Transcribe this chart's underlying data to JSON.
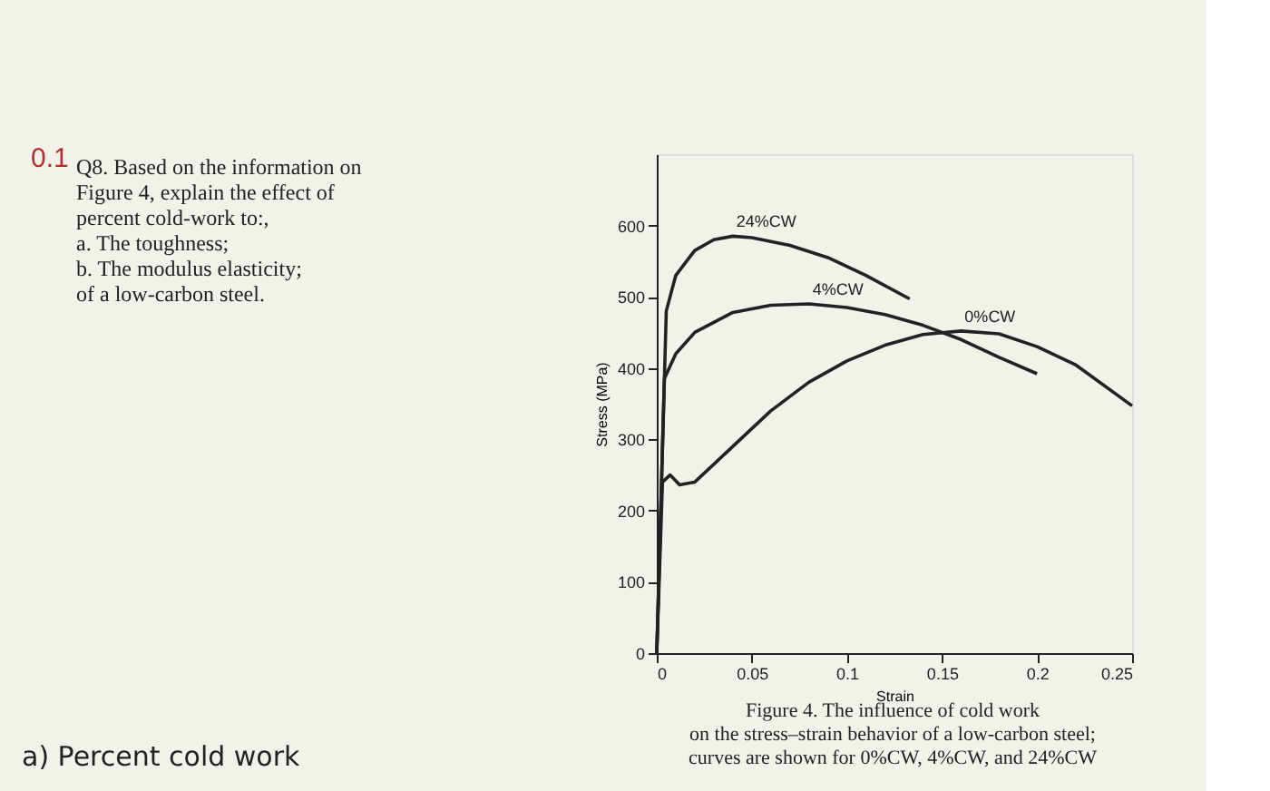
{
  "chart_data": {
    "type": "line",
    "xlabel": "Strain",
    "ylabel": "Stress (MPa)",
    "xlim": [
      0,
      0.25
    ],
    "ylim": [
      0,
      700
    ],
    "xticks": [
      0,
      0.05,
      0.1,
      0.15,
      0.2,
      0.25
    ],
    "yticks": [
      0,
      100,
      200,
      300,
      400,
      500,
      600
    ],
    "grid": false,
    "legend": false,
    "marker": "none",
    "line_style": "solid",
    "series": [
      {
        "name": "24%CW",
        "color": "#222222",
        "x": [
          0,
          0.005,
          0.01,
          0.02,
          0.03,
          0.04,
          0.05,
          0.07,
          0.09,
          0.11,
          0.133
        ],
        "values": [
          0,
          480,
          530,
          565,
          580,
          585,
          583,
          572,
          555,
          530,
          497
        ]
      },
      {
        "name": "4%CW",
        "color": "#222222",
        "x": [
          0,
          0.004,
          0.01,
          0.02,
          0.04,
          0.06,
          0.08,
          0.1,
          0.12,
          0.14,
          0.16,
          0.18,
          0.2
        ],
        "values": [
          0,
          385,
          420,
          450,
          478,
          488,
          490,
          485,
          475,
          460,
          440,
          415,
          392
        ]
      },
      {
        "name": "0%CW",
        "color": "#222222",
        "x": [
          0,
          0.003,
          0.007,
          0.012,
          0.02,
          0.04,
          0.06,
          0.08,
          0.1,
          0.12,
          0.14,
          0.16,
          0.18,
          0.2,
          0.22,
          0.25
        ],
        "values": [
          0,
          240,
          250,
          236,
          240,
          290,
          340,
          380,
          410,
          432,
          447,
          452,
          448,
          430,
          405,
          347
        ]
      }
    ],
    "annotations": [
      "0.1",
      "Q8. Based on the information on\nFigure 4, explain the effect of\npercent cold-work to:,\n     a. The toughness;\n     b. The modulus elasticity;\nof a low-carbon steel.",
      "Figure 4. The influence of cold work\non the stress–strain behavior of a low-carbon steel;\ncurves are shown for 0%CW, 4%CW, and 24%CW",
      "a) Percent cold work"
    ]
  }
}
